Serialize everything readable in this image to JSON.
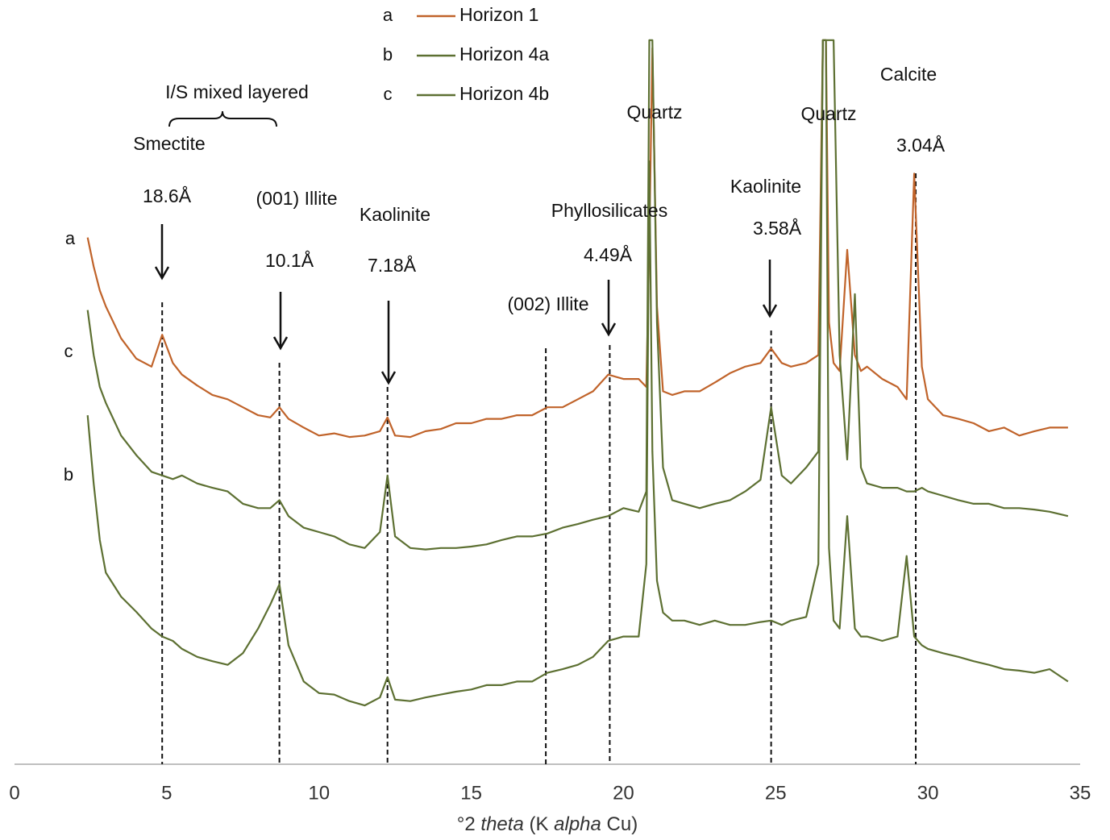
{
  "chart_data": {
    "type": "line",
    "xlabel_parts": [
      "°2 ",
      "theta",
      " (K ",
      "alpha",
      " Cu)"
    ],
    "xlim": [
      0,
      35
    ],
    "xticks": [
      0,
      5,
      10,
      15,
      20,
      25,
      30,
      35
    ],
    "ylim": [
      0,
      100
    ],
    "legend": "top",
    "x": [
      2.4,
      2.6,
      2.8,
      3,
      3.5,
      4,
      4.5,
      4.85,
      5.2,
      5.5,
      6,
      6.5,
      7,
      7.5,
      8,
      8.4,
      8.7,
      9,
      9.5,
      10,
      10.5,
      11,
      11.5,
      12,
      12.25,
      12.5,
      13,
      13.5,
      14,
      14.5,
      15,
      15.5,
      16,
      16.5,
      17,
      17.5,
      18,
      18.5,
      19,
      19.5,
      20,
      20.5,
      20.75,
      20.85,
      20.95,
      21.1,
      21.3,
      21.6,
      22,
      22.5,
      23,
      23.5,
      24,
      24.5,
      24.85,
      25.2,
      25.5,
      26,
      26.4,
      26.55,
      26.65,
      26.75,
      26.9,
      27.1,
      27.35,
      27.6,
      27.8,
      28,
      28.5,
      29,
      29.3,
      29.55,
      29.8,
      30,
      30.5,
      31,
      31.5,
      32,
      32.5,
      33,
      33.5,
      34,
      34.6
    ],
    "series": [
      {
        "name": "Horizon 1",
        "label": "a",
        "color": "#c0632a",
        "values": [
          72.6,
          68.6,
          65.3,
          63.1,
          58.7,
          55.9,
          54.8,
          59.2,
          55.3,
          53.7,
          52.2,
          50.9,
          50.3,
          49.2,
          48.1,
          47.8,
          49.2,
          47.6,
          46.4,
          45.3,
          45.6,
          45.1,
          45.3,
          45.9,
          47.8,
          45.3,
          45.1,
          45.9,
          46.2,
          47.0,
          47.0,
          47.6,
          47.6,
          48.1,
          48.1,
          49.2,
          49.2,
          50.3,
          51.4,
          53.7,
          53.1,
          53.1,
          52.0,
          72.0,
          98.7,
          63.1,
          51.4,
          50.9,
          51.4,
          51.4,
          52.6,
          53.9,
          54.8,
          55.3,
          57.3,
          55.3,
          54.8,
          55.3,
          56.4,
          99.8,
          99.8,
          60.9,
          55.3,
          54.2,
          70.9,
          56.4,
          54.2,
          54.8,
          53.1,
          52.0,
          50.3,
          81.4,
          54.8,
          50.3,
          48.1,
          47.6,
          47.0,
          45.9,
          46.4,
          45.3,
          45.9,
          46.4,
          46.4
        ]
      },
      {
        "name": "Horizon 4a",
        "label": "b",
        "color": "#5d7032",
        "values": [
          48.1,
          38.7,
          30.9,
          26.4,
          23.1,
          21.0,
          18.7,
          17.6,
          17.0,
          15.9,
          14.8,
          14.2,
          13.7,
          15.3,
          18.7,
          22.0,
          24.8,
          16.4,
          11.4,
          9.8,
          9.6,
          8.7,
          8.1,
          9.2,
          12.0,
          8.9,
          8.7,
          9.2,
          9.6,
          10.0,
          10.3,
          10.9,
          10.9,
          11.4,
          11.4,
          12.6,
          13.1,
          13.7,
          14.8,
          17.0,
          17.6,
          17.6,
          27.6,
          83.1,
          43.1,
          25.3,
          20.9,
          19.8,
          19.8,
          19.2,
          19.8,
          19.2,
          19.2,
          19.6,
          19.8,
          19.2,
          19.8,
          20.3,
          27.6,
          99.8,
          99.8,
          29.8,
          19.8,
          18.7,
          34.2,
          18.7,
          17.6,
          17.6,
          17.0,
          17.6,
          28.7,
          17.6,
          16.4,
          15.9,
          15.3,
          14.8,
          14.2,
          13.7,
          13.1,
          12.9,
          12.6,
          13.1,
          11.4
        ]
      },
      {
        "name": "Horizon 4b",
        "label": "c",
        "color": "#5d7032",
        "values": [
          62.6,
          56.4,
          52.0,
          49.8,
          45.3,
          42.6,
          40.3,
          39.8,
          39.3,
          39.8,
          38.7,
          38.1,
          37.6,
          35.9,
          35.3,
          35.3,
          36.4,
          34.2,
          32.6,
          32.0,
          31.4,
          30.3,
          29.8,
          32.0,
          39.8,
          31.4,
          29.8,
          29.6,
          29.8,
          29.8,
          30.0,
          30.3,
          30.9,
          31.4,
          31.4,
          31.8,
          32.6,
          33.1,
          33.7,
          34.2,
          35.3,
          34.8,
          37.6,
          99.8,
          99.8,
          60.9,
          40.9,
          36.4,
          35.9,
          35.3,
          35.9,
          36.4,
          37.6,
          39.2,
          49.2,
          39.8,
          38.7,
          40.9,
          43.1,
          99.8,
          99.8,
          99.8,
          99.8,
          56.4,
          42.0,
          64.8,
          40.9,
          38.7,
          38.1,
          38.1,
          37.6,
          37.6,
          38.1,
          37.6,
          37.0,
          36.4,
          35.9,
          35.9,
          35.3,
          35.3,
          35.1,
          34.8,
          34.2
        ]
      }
    ],
    "reference_lines": [
      4.85,
      8.7,
      12.25,
      17.45,
      19.55,
      24.85,
      29.6
    ],
    "annotations": [
      "I/S mixed layered",
      "Smectite",
      "18.6Å",
      "(001) Illite",
      "10.1Å",
      "Kaolinite",
      "7.18Å",
      "Phyllosilicates",
      "4.49Å",
      "(002) Illite",
      "Quartz",
      "Kaolinite",
      "3.58Å",
      "Quartz",
      "Calcite",
      "3.04Å"
    ]
  }
}
